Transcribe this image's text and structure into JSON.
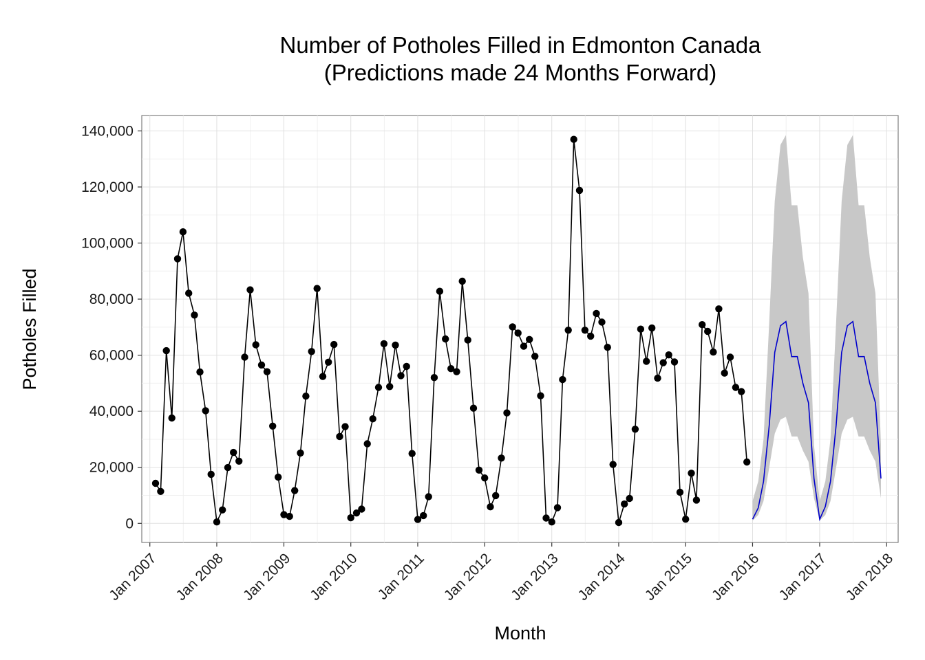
{
  "chart_data": {
    "type": "line",
    "title": "Number of Potholes Filled in Edmonton Canada",
    "subtitle": "(Predictions made 24 Months Forward)",
    "xlabel": "Month",
    "ylabel": "Potholes Filled",
    "x_range": [
      "2006-11-18",
      "2018-03-05"
    ],
    "ylim": [
      -6800,
      145500
    ],
    "y_ticks": [
      0,
      20000,
      40000,
      60000,
      80000,
      100000,
      120000,
      140000
    ],
    "y_tick_labels": [
      "0",
      "20,000",
      "40,000",
      "60,000",
      "80,000",
      "100,000",
      "120,000",
      "140,000"
    ],
    "x_ticks": [
      "2007-01-01",
      "2008-01-01",
      "2009-01-01",
      "2010-01-01",
      "2011-01-01",
      "2012-01-01",
      "2013-01-01",
      "2014-01-01",
      "2015-01-01",
      "2016-01-01",
      "2017-01-01",
      "2018-01-01"
    ],
    "x_tick_labels": [
      "Jan 2007",
      "Jan 2008",
      "Jan 2009",
      "Jan 2010",
      "Jan 2011",
      "Jan 2012",
      "Jan 2013",
      "Jan 2014",
      "Jan 2015",
      "Jan 2016",
      "Jan 2017",
      "Jan 2018"
    ],
    "grid": true,
    "legend": "none",
    "colors": {
      "observed": "#000000",
      "forecast": "#0000cc",
      "interval": "#c8c8c8"
    },
    "observed": {
      "start": "2007-02",
      "values": [
        14300,
        11400,
        61600,
        37600,
        94400,
        104000,
        82100,
        74300,
        54000,
        40200,
        17500,
        500,
        4800,
        19900,
        25300,
        22200,
        59300,
        83300,
        63700,
        56500,
        54100,
        34700,
        16500,
        3100,
        2500,
        11700,
        25100,
        45400,
        61300,
        83800,
        52400,
        57500,
        63800,
        31000,
        34500,
        2000,
        3700,
        5100,
        28400,
        37300,
        48500,
        64100,
        48800,
        63600,
        52700,
        56000,
        24900,
        1400,
        2800,
        9500,
        52000,
        82800,
        65800,
        55200,
        54100,
        86400,
        65400,
        41100,
        19000,
        16200,
        5900,
        9900,
        23300,
        39400,
        70100,
        67900,
        63200,
        65600,
        59600,
        45500,
        1900,
        500,
        5600,
        51300,
        68900,
        137000,
        118800,
        68900,
        66800,
        74900,
        71800,
        62800,
        21000,
        300,
        6900,
        8900,
        33600,
        69300,
        57800,
        69700,
        51800,
        57300,
        60100,
        57600,
        11100,
        1500,
        17900,
        8300,
        70900,
        68500,
        61100,
        76500,
        53600,
        59300,
        48500,
        47000,
        21900
      ]
    },
    "forecast": {
      "start": "2016-01",
      "mean": [
        1500,
        5500,
        15000,
        35000,
        61000,
        70500,
        72000,
        59500,
        59500,
        50000,
        43000,
        16000,
        1500,
        6000,
        15000,
        35000,
        61000,
        70500,
        72000,
        59500,
        59500,
        50000,
        43000,
        16000
      ],
      "lower": [
        1000,
        3000,
        8000,
        20000,
        32000,
        37000,
        38000,
        31000,
        31000,
        26000,
        22000,
        9000,
        1000,
        3000,
        8000,
        20000,
        32000,
        37000,
        38000,
        31000,
        31000,
        26000,
        22000,
        9000
      ],
      "upper": [
        8000,
        15000,
        30000,
        72000,
        115000,
        135000,
        138500,
        113500,
        113500,
        95000,
        82000,
        28000,
        8000,
        15000,
        30000,
        72000,
        115000,
        135000,
        138500,
        113500,
        113500,
        95000,
        82000,
        28000
      ]
    }
  }
}
